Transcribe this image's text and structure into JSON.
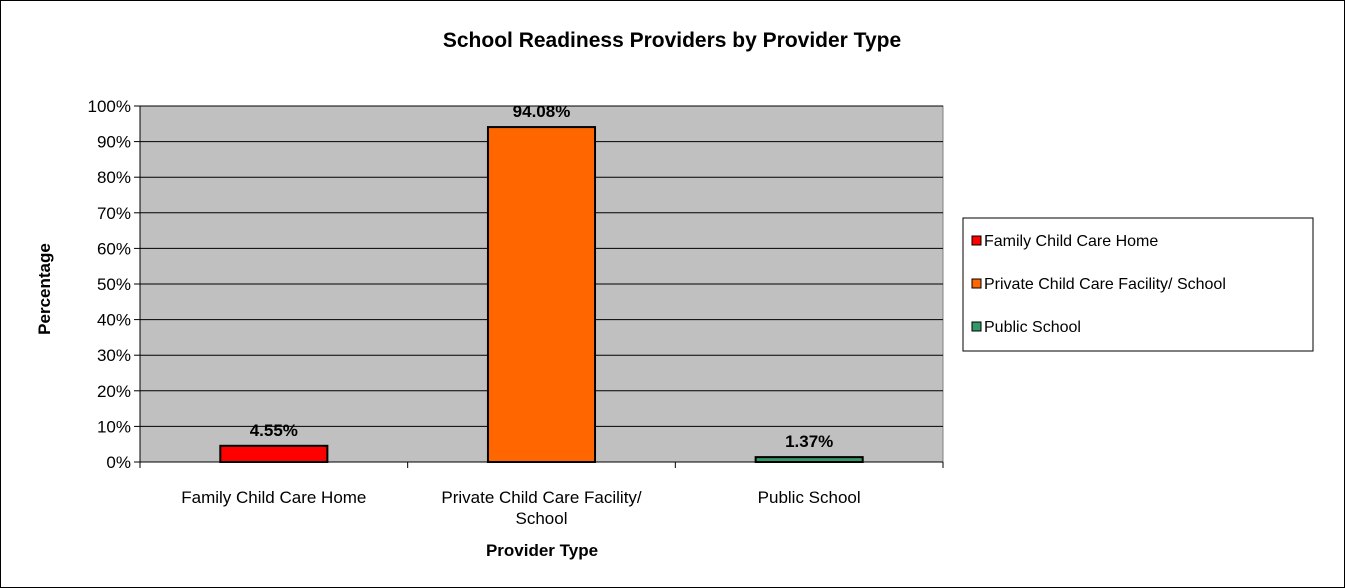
{
  "chart_data": {
    "type": "bar",
    "title": "School Readiness Providers by Provider Type",
    "xlabel": "Provider Type",
    "ylabel": "Percentage",
    "categories": [
      [
        "Family Child Care Home"
      ],
      [
        "Private Child Care Facility/",
        "School"
      ],
      [
        "Public School"
      ]
    ],
    "values": [
      4.55,
      94.08,
      1.37
    ],
    "data_labels": [
      "4.55%",
      "94.08%",
      "1.37%"
    ],
    "colors": [
      "#ff0000",
      "#ff6600",
      "#339966"
    ],
    "ylim": [
      0,
      100
    ],
    "yticks": [
      "0%",
      "10%",
      "20%",
      "30%",
      "40%",
      "50%",
      "60%",
      "70%",
      "80%",
      "90%",
      "100%"
    ],
    "grid": true,
    "plot_background": "#c0c0c0",
    "legend": {
      "position": "right",
      "entries": [
        "Family Child Care Home",
        "Private Child Care Facility/ School",
        "Public School"
      ]
    }
  }
}
